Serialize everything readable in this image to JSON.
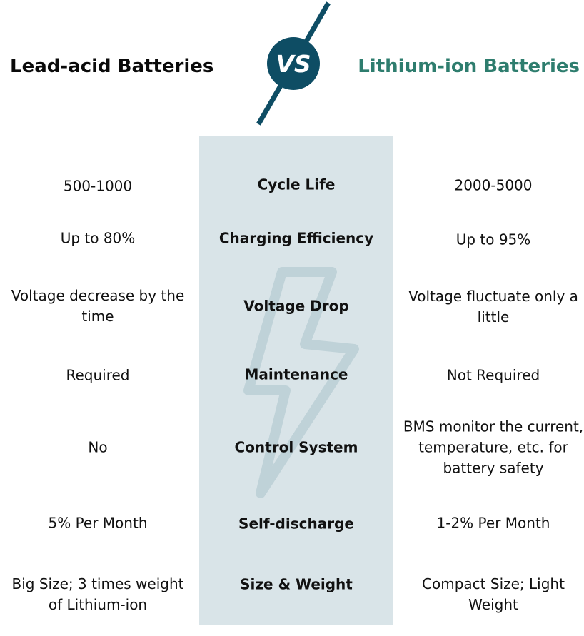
{
  "header": {
    "left_title": "Lead-acid Batteries",
    "vs_label": "VS",
    "right_title": "Lithium-ion Batteries"
  },
  "colors": {
    "accent_dark": "#0e4d64",
    "accent_green": "#2e7d6e",
    "center_column": "#d9e4e8",
    "bolt": "#bfd2d8"
  },
  "icons": {
    "background": "lightning-bolt-icon"
  },
  "rows": [
    {
      "feature": "Cycle Life",
      "lead_acid": "500-1000",
      "lithium_ion": "2000-5000"
    },
    {
      "feature": "Charging Efficiency",
      "lead_acid": "Up to 80%",
      "lithium_ion": "Up to 95%"
    },
    {
      "feature": "Voltage Drop",
      "lead_acid": "Voltage decrease by the time",
      "lithium_ion": "Voltage fluctuate only a little"
    },
    {
      "feature": "Maintenance",
      "lead_acid": "Required",
      "lithium_ion": "Not Required"
    },
    {
      "feature": "Control System",
      "lead_acid": "No",
      "lithium_ion": "BMS monitor the current, temperature, etc. for battery safety"
    },
    {
      "feature": "Self-discharge",
      "lead_acid": "5% Per Month",
      "lithium_ion": "1-2% Per Month"
    },
    {
      "feature": "Size & Weight",
      "lead_acid": "Big Size; 3 times weight of Lithium-ion",
      "lithium_ion": "Compact Size; Light Weight"
    }
  ]
}
